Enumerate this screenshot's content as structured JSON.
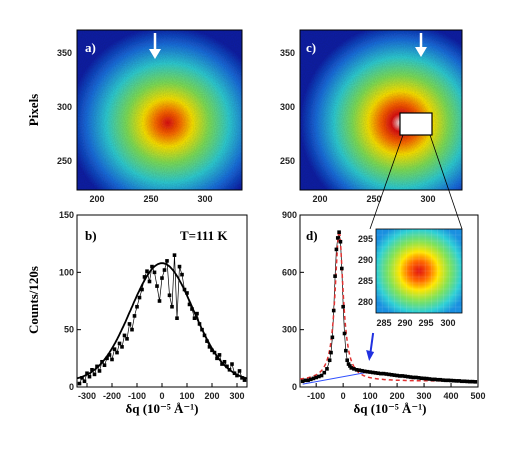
{
  "figure": {
    "panels": {
      "a": {
        "label": "a)",
        "x_ticks": [
          "200",
          "250",
          "300"
        ],
        "y_ticks": [
          "250",
          "300",
          "350"
        ],
        "ylabel": "Pixels"
      },
      "c": {
        "label": "c)",
        "x_ticks": [
          "200",
          "250",
          "300"
        ],
        "y_ticks": [
          "250",
          "300",
          "350"
        ]
      },
      "b": {
        "label": "b)",
        "annotation": "T=111 K",
        "ylabel": "Counts/120s",
        "xlabel": "δq (10⁻⁵ Å⁻¹)"
      },
      "d": {
        "label": "d)",
        "xlabel": "δq (10⁻⁵ Å⁻¹)"
      },
      "inset": {
        "x_ticks": [
          "285",
          "290",
          "295",
          "300"
        ],
        "y_ticks": [
          "280",
          "285",
          "290",
          "295"
        ]
      }
    },
    "colors": {
      "cmap_low": "#0a1fa8",
      "cmap_mid": "#2fd0d6",
      "cmap_high": "#ffe600",
      "cmap_peak": "#e01010",
      "fit_dashed": "#e03030",
      "arrow_blue": "#2030e0",
      "baseline_blue": "#3050ff"
    }
  },
  "chart_data": [
    {
      "type": "scatter",
      "panel": "b",
      "annotation": "T=111 K",
      "ylabel": "Counts/120s",
      "xlabel": "δq (10⁻⁵ Å⁻¹)",
      "xlim": [
        -340,
        340
      ],
      "ylim": [
        0,
        150
      ],
      "x_ticks": [
        -300,
        -200,
        -100,
        0,
        100,
        200,
        300
      ],
      "y_ticks": [
        0,
        50,
        100,
        150
      ],
      "series": [
        {
          "x": [
            -330,
            -320,
            -310,
            -300,
            -290,
            -280,
            -270,
            -260,
            -250,
            -240,
            -230,
            -220,
            -210,
            -200,
            -190,
            -180,
            -170,
            -160,
            -150,
            -140,
            -130,
            -120,
            -110,
            -100,
            -90,
            -80,
            -70,
            -60,
            -50,
            -40,
            -30,
            -20,
            -10,
            0,
            10,
            20,
            30,
            40,
            50,
            60,
            70,
            80,
            90,
            100,
            110,
            120,
            130,
            140,
            150,
            160,
            170,
            180,
            190,
            200,
            210,
            220,
            230,
            240,
            250,
            260,
            270,
            280,
            290,
            300,
            310,
            320,
            330
          ],
          "y": [
            3,
            8,
            5,
            12,
            9,
            15,
            11,
            18,
            14,
            22,
            19,
            25,
            28,
            24,
            33,
            30,
            38,
            35,
            45,
            42,
            55,
            50,
            62,
            70,
            78,
            85,
            96,
            101,
            92,
            105,
            100,
            88,
            75,
            95,
            102,
            110,
            80,
            70,
            115,
            60,
            105,
            98,
            85,
            82,
            72,
            68,
            60,
            64,
            55,
            50,
            45,
            40,
            35,
            32,
            30,
            25,
            28,
            20,
            22,
            18,
            15,
            20,
            12,
            10,
            14,
            8,
            6
          ]
        }
      ],
      "fit": {
        "shape": "gaussian",
        "amplitude": 103,
        "center": 0,
        "sigma": 125,
        "offset": 5
      }
    },
    {
      "type": "scatter",
      "panel": "d",
      "xlabel": "δq (10⁻⁵ Å⁻¹)",
      "xlim": [
        -160,
        500
      ],
      "ylim": [
        0,
        900
      ],
      "x_ticks": [
        -100,
        0,
        100,
        200,
        300,
        400,
        500
      ],
      "y_ticks": [
        0,
        300,
        600,
        900
      ],
      "series": [
        {
          "x": [
            -150,
            -140,
            -130,
            -120,
            -110,
            -100,
            -90,
            -80,
            -70,
            -60,
            -50,
            -45,
            -40,
            -35,
            -30,
            -25,
            -20,
            -15,
            -10,
            -5,
            0,
            5,
            10,
            15,
            20,
            25,
            30,
            40,
            50,
            60,
            70,
            80,
            90,
            100,
            110,
            120,
            130,
            140,
            150,
            160,
            170,
            180,
            190,
            200,
            210,
            220,
            230,
            240,
            250,
            260,
            270,
            280,
            290,
            300,
            310,
            320,
            330,
            340,
            350,
            360,
            370,
            380,
            390,
            400,
            410,
            420,
            430,
            440,
            450,
            460,
            470,
            480,
            490
          ],
          "y": [
            30,
            35,
            35,
            40,
            45,
            50,
            55,
            60,
            75,
            95,
            140,
            180,
            260,
            400,
            580,
            720,
            780,
            810,
            760,
            620,
            420,
            280,
            190,
            140,
            120,
            110,
            100,
            95,
            90,
            88,
            85,
            82,
            80,
            78,
            76,
            74,
            72,
            70,
            70,
            68,
            66,
            64,
            62,
            60,
            58,
            58,
            56,
            54,
            52,
            50,
            50,
            48,
            46,
            45,
            44,
            42,
            40,
            40,
            38,
            38,
            36,
            35,
            35,
            34,
            33,
            32,
            32,
            30,
            30,
            29,
            28,
            28,
            27
          ]
        }
      ],
      "fit": {
        "shape": "lorentzian",
        "amplitude": 790,
        "center": -15,
        "gamma": 18
      },
      "baseline": {
        "from": [
          -150,
          15
        ],
        "to": [
          100,
          80
        ]
      },
      "arrow_at_x": 100
    }
  ]
}
